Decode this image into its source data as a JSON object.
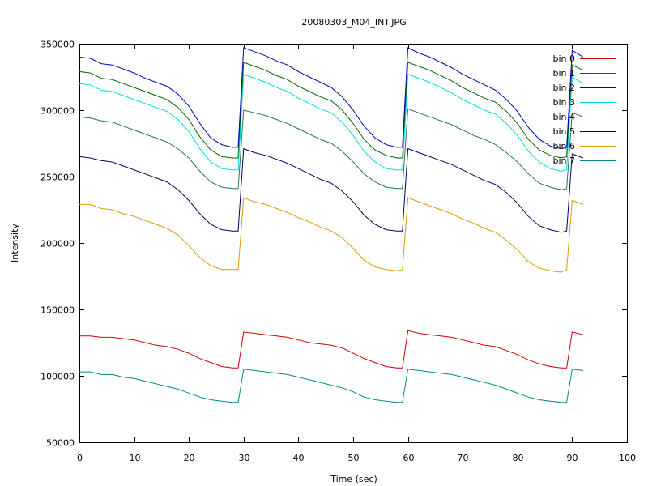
{
  "chart_data": {
    "type": "line",
    "title": "20080303_M04_INT.JPG",
    "xlabel": "Time (sec)",
    "ylabel": "Intensity",
    "xlim": [
      0,
      100
    ],
    "ylim": [
      50000,
      350000
    ],
    "xticks": [
      "0",
      "10",
      "20",
      "30",
      "40",
      "50",
      "60",
      "70",
      "80",
      "90",
      "100"
    ],
    "yticks": [
      "50000",
      "100000",
      "150000",
      "200000",
      "250000",
      "300000",
      "350000"
    ],
    "grid": false,
    "legend_position": "top-right",
    "x": [
      0,
      2,
      4,
      6,
      8,
      10,
      12,
      14,
      16,
      18,
      20,
      22,
      24,
      26,
      28,
      29,
      30,
      32,
      34,
      36,
      38,
      40,
      42,
      44,
      46,
      48,
      50,
      52,
      54,
      56,
      58,
      59,
      60,
      62,
      64,
      66,
      68,
      70,
      72,
      74,
      76,
      78,
      80,
      82,
      84,
      86,
      88,
      89,
      90,
      92
    ],
    "series": [
      {
        "name": "bin 0",
        "color": "#cc0000",
        "values": [
          130000,
          130000,
          129000,
          129000,
          128000,
          127000,
          125000,
          123000,
          122000,
          120000,
          117000,
          113000,
          110000,
          107000,
          106000,
          106000,
          133000,
          132000,
          131000,
          130000,
          129000,
          127000,
          125000,
          124000,
          123000,
          121000,
          117000,
          113000,
          110000,
          107000,
          106000,
          106000,
          134000,
          132000,
          131000,
          130000,
          129000,
          127000,
          125000,
          123000,
          122000,
          119000,
          116000,
          112000,
          109000,
          107000,
          106000,
          106000,
          133000,
          131000
        ]
      },
      {
        "name": "bin 1",
        "color": "#006600",
        "values": [
          329000,
          328000,
          324000,
          323000,
          320000,
          317000,
          314000,
          311000,
          308000,
          302000,
          293000,
          280000,
          270000,
          265000,
          264000,
          264000,
          336000,
          333000,
          330000,
          326000,
          323000,
          318000,
          314000,
          310000,
          307000,
          300000,
          290000,
          278000,
          270000,
          266000,
          264000,
          264000,
          336000,
          333000,
          330000,
          326000,
          322000,
          317000,
          313000,
          309000,
          306000,
          299000,
          290000,
          278000,
          270000,
          266000,
          264000,
          265000,
          334000,
          330000
        ]
      },
      {
        "name": "bin 2",
        "color": "#0000bb",
        "values": [
          340000,
          339000,
          335000,
          334000,
          331000,
          328000,
          324000,
          321000,
          318000,
          312000,
          303000,
          290000,
          279000,
          274000,
          272000,
          272000,
          347000,
          344000,
          341000,
          337000,
          334000,
          329000,
          325000,
          321000,
          317000,
          310000,
          300000,
          288000,
          279000,
          274000,
          272000,
          272000,
          347000,
          343000,
          340000,
          336000,
          332000,
          327000,
          323000,
          319000,
          315000,
          308000,
          299000,
          287000,
          278000,
          273000,
          271000,
          272000,
          345000,
          340000
        ]
      },
      {
        "name": "bin 3",
        "color": "#00dddd",
        "values": [
          320000,
          319000,
          315000,
          314000,
          311000,
          308000,
          305000,
          302000,
          299000,
          293000,
          284000,
          271000,
          261000,
          256000,
          255000,
          255000,
          327000,
          324000,
          321000,
          317000,
          314000,
          309000,
          305000,
          301000,
          298000,
          291000,
          281000,
          269000,
          261000,
          256000,
          255000,
          255000,
          327000,
          324000,
          321000,
          317000,
          313000,
          308000,
          304000,
          300000,
          297000,
          290000,
          281000,
          269000,
          261000,
          256000,
          254000,
          255000,
          325000,
          320000
        ]
      },
      {
        "name": "bin 4",
        "color": "#227755",
        "values": [
          295000,
          294000,
          292000,
          291000,
          288000,
          285000,
          282000,
          279000,
          276000,
          271000,
          264000,
          254000,
          246000,
          242000,
          241000,
          241000,
          300000,
          298000,
          296000,
          293000,
          290000,
          286000,
          282000,
          278000,
          275000,
          269000,
          261000,
          252000,
          246000,
          242000,
          241000,
          241000,
          301000,
          298000,
          295000,
          292000,
          289000,
          285000,
          281000,
          278000,
          274000,
          268000,
          261000,
          252000,
          245000,
          242000,
          240000,
          241000,
          298000,
          295000
        ]
      },
      {
        "name": "bin 5",
        "color": "#000066",
        "values": [
          265000,
          264000,
          262000,
          261000,
          258000,
          255000,
          252000,
          249000,
          246000,
          240000,
          232000,
          222000,
          214000,
          210000,
          209000,
          209000,
          271000,
          268000,
          266000,
          263000,
          260000,
          256000,
          252000,
          248000,
          245000,
          239000,
          231000,
          221000,
          214000,
          210000,
          209000,
          209000,
          271000,
          268000,
          265000,
          262000,
          259000,
          255000,
          251000,
          247000,
          244000,
          238000,
          230000,
          220000,
          213000,
          210000,
          208000,
          209000,
          267000,
          264000
        ]
      },
      {
        "name": "bin 6",
        "color": "#dd9900",
        "values": [
          229000,
          229000,
          226000,
          225000,
          222000,
          220000,
          217000,
          214000,
          211000,
          206000,
          198000,
          189000,
          183000,
          180000,
          180000,
          180000,
          234000,
          231000,
          229000,
          226000,
          223000,
          219000,
          216000,
          212000,
          209000,
          204000,
          196000,
          187000,
          182000,
          180000,
          179000,
          180000,
          234000,
          231000,
          228000,
          225000,
          222000,
          218000,
          215000,
          211000,
          208000,
          202000,
          195000,
          186000,
          181000,
          179000,
          178000,
          180000,
          232000,
          229000
        ]
      },
      {
        "name": "bin 7",
        "color": "#008888",
        "values": [
          103000,
          103000,
          101000,
          101000,
          99000,
          98000,
          96000,
          94000,
          92000,
          90000,
          87000,
          84000,
          82000,
          81000,
          80000,
          80000,
          105000,
          104000,
          103000,
          102000,
          101000,
          99000,
          97000,
          95000,
          93000,
          91000,
          88000,
          84000,
          82000,
          81000,
          80000,
          80000,
          105000,
          104000,
          103000,
          102000,
          101000,
          99000,
          97000,
          95000,
          93000,
          90000,
          87000,
          84000,
          82000,
          81000,
          80000,
          80000,
          105000,
          104000
        ]
      }
    ]
  }
}
